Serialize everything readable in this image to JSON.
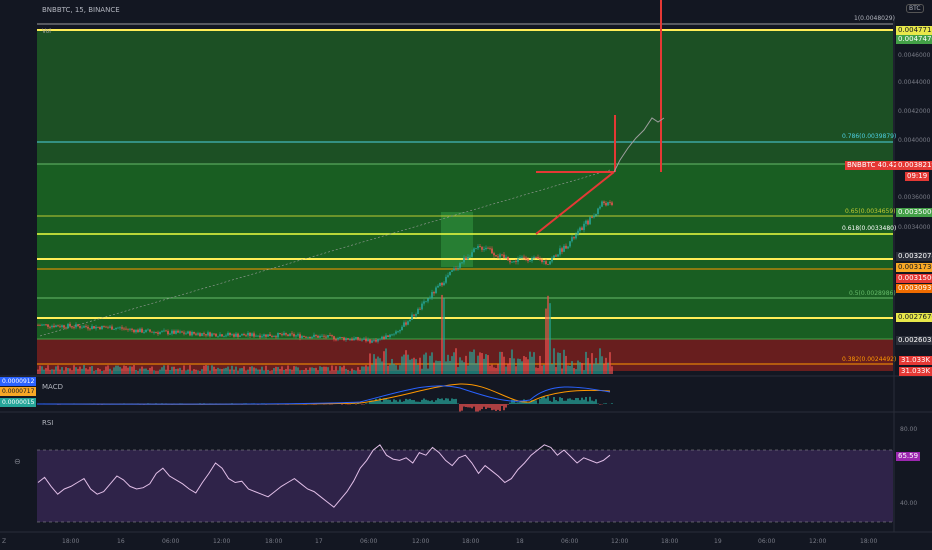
{
  "header": {
    "symbol_line": "BNBBTC, 15, BINANCE",
    "currency_badge": "BTC",
    "volume_label": "Vol"
  },
  "fib_levels": [
    {
      "text": "1(0.0048029)",
      "color": "#b2b5be"
    },
    {
      "text": "0.786(0.0039879)",
      "color": "#4dd0e1"
    },
    {
      "text": "0.65(0.0034659)",
      "color": "#c0ca33"
    },
    {
      "text": "0.618(0.0033480)",
      "color": "#ffffff"
    },
    {
      "text": "0.5(0.0028986)",
      "color": "#66bb6a"
    },
    {
      "text": "0.382(0.0024492)",
      "color": "#ff9800"
    }
  ],
  "price_labels": [
    {
      "text": "0.0047711",
      "bg": "#e8e84a",
      "fg": "#131722"
    },
    {
      "text": "0.0047476",
      "bg": "#43a047",
      "fg": "#ffffff"
    },
    {
      "text": "0.0038219",
      "bg": "#e53935",
      "fg": "#ffffff"
    },
    {
      "text": "09:19",
      "bg": "#e53935",
      "fg": "#ffffff"
    },
    {
      "text": "0.0035000",
      "bg": "#43a047",
      "fg": "#ffffff"
    },
    {
      "text": "0.0032078",
      "bg": "#2a2e39",
      "fg": "#ffffff"
    },
    {
      "text": "0.0031736",
      "bg": "#f9a825",
      "fg": "#131722"
    },
    {
      "text": "0.0031500",
      "bg": "#e53935",
      "fg": "#ffffff"
    },
    {
      "text": "0.0030939",
      "bg": "#ef6c00",
      "fg": "#ffffff"
    },
    {
      "text": "0.0027676",
      "bg": "#e8e84a",
      "fg": "#131722"
    },
    {
      "text": "0.0026032",
      "bg": "#2a2e39",
      "fg": "#ffffff"
    },
    {
      "text": "31.033K",
      "bg": "#e53935",
      "fg": "#ffffff"
    },
    {
      "text": "31.033K",
      "bg": "#e53935",
      "fg": "#ffffff"
    }
  ],
  "symbol_price_tag": "BNBBTC 40.42%",
  "price_axis_ticks": [
    "0.0046000",
    "0.0044000",
    "0.0042000",
    "0.0040000",
    "0.0036000",
    "0.0034000"
  ],
  "macd": {
    "title": "MACD",
    "values": [
      "0.0000912",
      "0.0000717",
      "0.0000015"
    ]
  },
  "rsi": {
    "title": "RSI",
    "ticks": [
      "80.00",
      "40.00"
    ],
    "value": "65.59"
  },
  "time_ticks": [
    "18:00",
    "16",
    "06:00",
    "12:00",
    "18:00",
    "17",
    "06:00",
    "12:00",
    "18:00",
    "18",
    "06:00",
    "12:00",
    "18:00",
    "19",
    "06:00",
    "12:00",
    "18:00"
  ],
  "corner_label": "Z",
  "colors": {
    "background": "#131722",
    "up": "#26a69a",
    "down": "#ef5350",
    "zone_green": "#1b5e20",
    "zone_red": "#7f1d1d",
    "rsi_line": "#e1bee7",
    "macd_line": "#2962ff",
    "signal_line": "#ff9800"
  },
  "chart_data": {
    "type": "line",
    "title": "BNBBTC, 15, BINANCE",
    "ylabel": "BTC",
    "main_price_range": [
      0.00245,
      0.0048
    ],
    "series": [
      {
        "name": "BNBBTC",
        "points": [
          [
            0,
            0.00272
          ],
          [
            40,
            0.00271
          ],
          [
            80,
            0.0027
          ],
          [
            100,
            0.00268
          ],
          [
            120,
            0.00267
          ],
          [
            160,
            0.00266
          ],
          [
            200,
            0.00265
          ],
          [
            240,
            0.00265
          ],
          [
            280,
            0.00264
          ],
          [
            320,
            0.00262
          ],
          [
            335,
            0.00261
          ],
          [
            345,
            0.00263
          ],
          [
            360,
            0.00268
          ],
          [
            370,
            0.00275
          ],
          [
            380,
            0.00282
          ],
          [
            390,
            0.0029
          ],
          [
            400,
            0.00298
          ],
          [
            410,
            0.00306
          ],
          [
            420,
            0.00313
          ],
          [
            430,
            0.0032
          ],
          [
            440,
            0.00325
          ],
          [
            450,
            0.00326
          ],
          [
            455,
            0.00322
          ],
          [
            462,
            0.00319
          ],
          [
            470,
            0.00318
          ],
          [
            475,
            0.00315
          ],
          [
            480,
            0.00318
          ],
          [
            490,
            0.00318
          ],
          [
            500,
            0.00317
          ],
          [
            510,
            0.00315
          ],
          [
            520,
            0.00322
          ],
          [
            530,
            0.00328
          ],
          [
            538,
            0.00334
          ],
          [
            545,
            0.0034
          ],
          [
            555,
            0.00347
          ],
          [
            565,
            0.00357
          ],
          [
            575,
            0.00354
          ],
          [
            585,
            0.00356
          ],
          [
            595,
            0.0036
          ],
          [
            605,
            0.00366
          ],
          [
            612,
            0.00372
          ],
          [
            620,
            0.0038
          ],
          [
            630,
            0.0039
          ],
          [
            640,
            0.004
          ],
          [
            650,
            0.0041
          ],
          [
            660,
            0.00408
          ],
          [
            665,
            0.0041
          ]
        ]
      },
      {
        "name": "RSI",
        "values": [
          45,
          49,
          42,
          36,
          40,
          42,
          45,
          48,
          40,
          36,
          38,
          44,
          50,
          47,
          42,
          40,
          41,
          44,
          52,
          56,
          50,
          47,
          44,
          40,
          37,
          45,
          52,
          60,
          56,
          48,
          45,
          46,
          40,
          38,
          36,
          34,
          38,
          42,
          45,
          48,
          44,
          40,
          38,
          34,
          30,
          26,
          32,
          38,
          46,
          56,
          62,
          70,
          74,
          66,
          63,
          62,
          64,
          60,
          68,
          66,
          72,
          68,
          62,
          58,
          64,
          66,
          60,
          52,
          58,
          54,
          50,
          45,
          48,
          55,
          60,
          66,
          70,
          74,
          72,
          66,
          70,
          65,
          60,
          64,
          62,
          60,
          62,
          66
        ]
      }
    ]
  }
}
